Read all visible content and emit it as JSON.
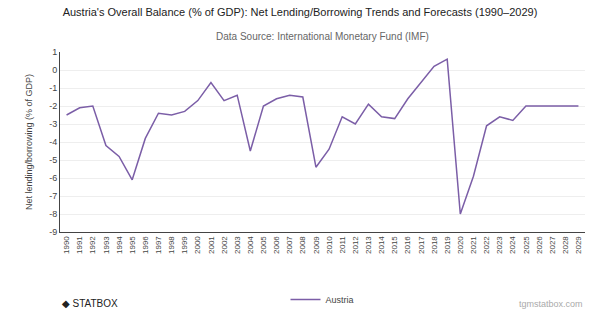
{
  "chart_data": {
    "type": "line",
    "title": "Austria's Overall Balance (% of GDP): Net Lending/Borrowing Trends and Forecasts (1990–2029)",
    "subtitle": "Data Source: International Monetary Fund (IMF)",
    "ylabel": "Net lending/borrowing (% of GDP)",
    "annotations": [
      "◆ STATBOX",
      "tgmstatbox.com"
    ],
    "x": [
      1990,
      1991,
      1992,
      1993,
      1994,
      1995,
      1996,
      1997,
      1998,
      1999,
      2000,
      2001,
      2002,
      2003,
      2004,
      2005,
      2006,
      2007,
      2008,
      2009,
      2010,
      2011,
      2012,
      2013,
      2014,
      2015,
      2016,
      2017,
      2018,
      2019,
      2020,
      2021,
      2022,
      2023,
      2024,
      2025,
      2026,
      2027,
      2028,
      2029
    ],
    "series": [
      {
        "name": "Austria",
        "color": "#7B5EA7",
        "values": [
          -2.5,
          -2.1,
          -2.0,
          -4.2,
          -4.8,
          -6.1,
          -3.8,
          -2.4,
          -2.5,
          -2.3,
          -1.7,
          -0.7,
          -1.7,
          -1.4,
          -4.5,
          -2.0,
          -1.6,
          -1.4,
          -1.5,
          -5.4,
          -4.4,
          -2.6,
          -3.0,
          -1.9,
          -2.6,
          -2.7,
          -1.6,
          -0.7,
          0.2,
          0.6,
          -8.0,
          -5.9,
          -3.1,
          -2.6,
          -2.8,
          -2.0,
          -2.0,
          -2.0,
          -2.0,
          -2.0
        ]
      }
    ],
    "xlim": [
      1989.5,
      2029.5
    ],
    "xticks": [
      1990,
      1991,
      1992,
      1993,
      1994,
      1995,
      1996,
      1997,
      1998,
      1999,
      2000,
      2001,
      2002,
      2003,
      2004,
      2005,
      2006,
      2007,
      2008,
      2009,
      2010,
      2011,
      2012,
      2013,
      2014,
      2015,
      2016,
      2017,
      2018,
      2019,
      2020,
      2021,
      2022,
      2023,
      2024,
      2025,
      2026,
      2027,
      2028,
      2029
    ],
    "ylim": [
      -9,
      1
    ],
    "yticks": [
      -9,
      -8,
      -7,
      -6,
      -5,
      -4,
      -3,
      -2,
      -1,
      0,
      1
    ],
    "grid": true,
    "legend": "bottom"
  }
}
